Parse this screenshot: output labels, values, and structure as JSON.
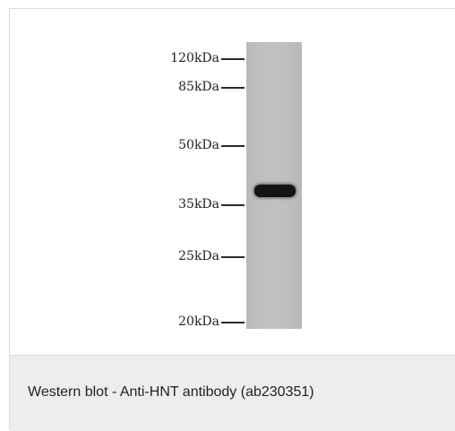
{
  "figure": {
    "markers": [
      {
        "label": "120kDa"
      },
      {
        "label": "85kDa"
      },
      {
        "label": "50kDa"
      },
      {
        "label": "35kDa"
      },
      {
        "label": "25kDa"
      },
      {
        "label": "20kDa"
      }
    ],
    "lane_color": "#bebebe",
    "band_color": "#141414"
  },
  "caption": {
    "text": "Western blot - Anti-HNT antibody (ab230351)"
  }
}
